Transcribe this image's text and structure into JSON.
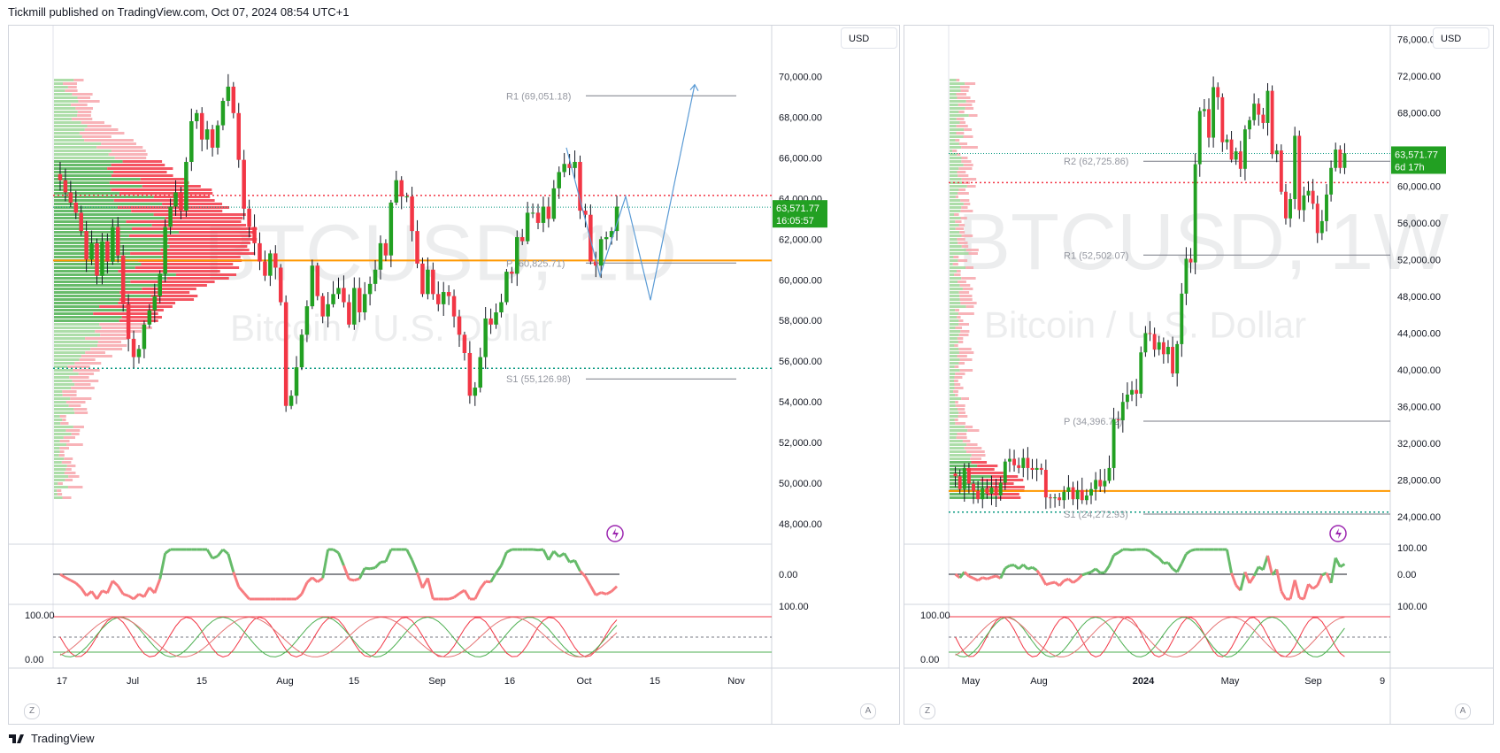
{
  "header": {
    "published": "Tickmill published on TradingView.com, Oct 07, 2024 08:54 UTC+1"
  },
  "footer": {
    "brand": "TradingView"
  },
  "colors": {
    "up": "#089981",
    "up_candle": "#22a022",
    "down": "#f23645",
    "down_light": "#f7a6ab",
    "up_light": "#9fd79a",
    "poc": "#ff9800",
    "projection": "#5b9bd5",
    "label_bg": "#22a022"
  },
  "chart_data": [
    {
      "type": "candlestick",
      "symbol_watermark": "BTCUSD, 1D",
      "name_watermark": "Bitcoin / U.S. Dollar",
      "currency": "USD",
      "ylim": [
        47000,
        72500
      ],
      "y_ticks": [
        48000,
        50000,
        52000,
        54000,
        56000,
        58000,
        60000,
        62000,
        64000,
        66000,
        68000,
        70000
      ],
      "y_tick_labels": [
        "48,000.00",
        "50,000.00",
        "52,000.00",
        "54,000.00",
        "56,000.00",
        "58,000.00",
        "60,000.00",
        "62,000.00",
        "64,000.00",
        "66,000.00",
        "68,000.00",
        "70,000.00"
      ],
      "x_tick_labels": [
        "17",
        "Jul",
        "15",
        "Aug",
        "15",
        "Sep",
        "16",
        "Oct",
        "15",
        "Nov"
      ],
      "last_price": "63,571.77",
      "countdown": "16:05:57",
      "pivots": [
        {
          "label": "R1 (69,051.18)",
          "value": 69051.18
        },
        {
          "label": "P (60,825.71)",
          "value": 60825.71
        },
        {
          "label": "S1 (55,126.98)",
          "value": 55126.98
        }
      ],
      "closes": [
        64900,
        64300,
        63800,
        63300,
        62400,
        61000,
        61800,
        60200,
        61900,
        60900,
        62600,
        61200,
        58800,
        57100,
        56200,
        56600,
        57800,
        58500,
        59200,
        60300,
        62600,
        63600,
        64300,
        63400,
        65800,
        67800,
        68200,
        66900,
        67400,
        66500,
        67600,
        68800,
        69500,
        68200,
        65900,
        63500,
        62600,
        61800,
        60900,
        60200,
        61300,
        60600,
        58900,
        53800,
        54300,
        55700,
        57300,
        58700,
        60700,
        59200,
        58200,
        58800,
        59300,
        59600,
        58900,
        57800,
        59600,
        58400,
        59300,
        59800,
        60500,
        61800,
        61200,
        63800,
        64900,
        64100,
        64100,
        62400,
        60800,
        59300,
        60500,
        59300,
        58800,
        59400,
        59200,
        58200,
        57300,
        56400,
        54300,
        54700,
        56200,
        58100,
        57800,
        58400,
        58900,
        60400,
        60300,
        62100,
        61900,
        63300,
        63300,
        62800,
        63600,
        63000,
        64500,
        65300,
        65700,
        65500,
        65800,
        63400,
        63200,
        60900,
        60700,
        62000,
        62100,
        62400,
        63600
      ],
      "osc_ticks": [
        "0.00"
      ],
      "stoch_ticks": [
        "100.00",
        "0.00"
      ]
    },
    {
      "type": "candlestick",
      "symbol_watermark": "BTCUSD, 1W",
      "name_watermark": "Bitcoin / U.S. Dollar",
      "currency": "USD",
      "ylim": [
        21000,
        77500
      ],
      "y_ticks": [
        24000,
        28000,
        32000,
        36000,
        40000,
        44000,
        48000,
        52000,
        56000,
        60000,
        64000,
        68000,
        72000,
        76000
      ],
      "y_tick_labels": [
        "24,000.00",
        "28,000.00",
        "32,000.00",
        "36,000.00",
        "40,000.00",
        "44,000.00",
        "48,000.00",
        "52,000.00",
        "56,000.00",
        "60,000.00",
        "64,000.00",
        "68,000.00",
        "72,000.00",
        "76,000.00"
      ],
      "x_tick_labels": [
        "May",
        "Aug",
        "2024",
        "May",
        "Sep",
        "9"
      ],
      "last_price": "63,571.77",
      "countdown": "6d 17h",
      "pivots": [
        {
          "label": "R2 (62,725.86)",
          "value": 62725.86
        },
        {
          "label": "R1 (52,502.07)",
          "value": 52502.07
        },
        {
          "label": "P (34,396.72)",
          "value": 34396.72
        },
        {
          "label": "S1 (24,272.93)",
          "value": 24272.93
        }
      ],
      "closes": [
        28400,
        27000,
        29300,
        27600,
        26800,
        25900,
        27100,
        26500,
        27200,
        26300,
        27700,
        30000,
        30300,
        29600,
        29300,
        30400,
        29300,
        29100,
        29300,
        29100,
        26100,
        26000,
        26100,
        25800,
        26700,
        27200,
        25900,
        26900,
        25800,
        26300,
        27000,
        28000,
        27300,
        27900,
        29300,
        34600,
        34500,
        36500,
        37300,
        37800,
        37400,
        41900,
        44000,
        43900,
        42200,
        43000,
        41700,
        42500,
        39600,
        42800,
        48300,
        52100,
        51700,
        62400,
        68200,
        68400,
        65300,
        70800,
        69700,
        64800,
        65100,
        62900,
        63800,
        61900,
        66200,
        67200,
        69000,
        67800,
        66900,
        70400,
        63500,
        63900,
        59400,
        56500,
        58600,
        65500,
        57400,
        59000,
        59500,
        58100,
        54900,
        56200,
        59100,
        62000,
        64000,
        62000,
        63600
      ],
      "osc_ticks": [
        "100.00",
        "0.00"
      ],
      "stoch_ticks": [
        "100.00",
        "0.00"
      ]
    }
  ]
}
